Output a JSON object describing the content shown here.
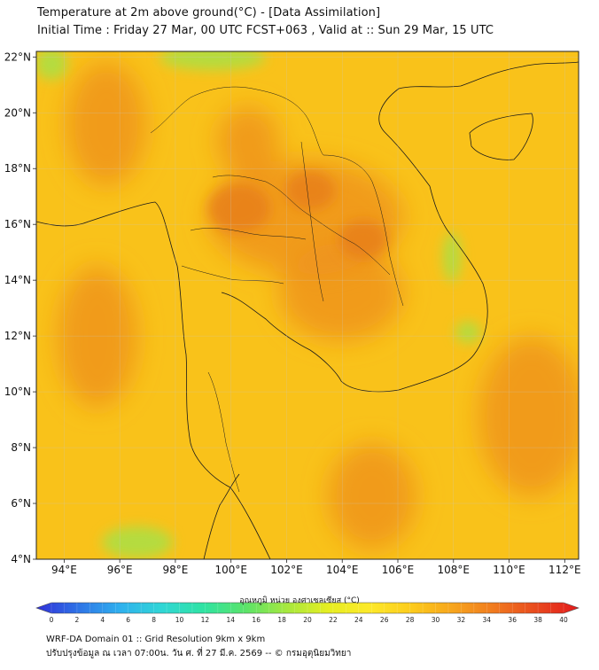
{
  "header": {
    "title_line1": "Temperature at 2m above ground(°C) - [Data Assimilation]",
    "title_line2": "Initial Time : Friday 27 Mar, 00 UTC FCST+063 , Valid at :: Sun 29 Mar, 15 UTC"
  },
  "map": {
    "variable": "2 m air temperature",
    "unit": "°C",
    "lon_range": [
      93,
      112.5
    ],
    "lat_range": [
      4,
      22.2
    ],
    "x_ticks": [
      "94°E",
      "96°E",
      "98°E",
      "100°E",
      "102°E",
      "104°E",
      "106°E",
      "108°E",
      "110°E",
      "112°E"
    ],
    "x_tick_values": [
      94,
      96,
      98,
      100,
      102,
      104,
      106,
      108,
      110,
      112
    ],
    "y_ticks": [
      "22°N",
      "20°N",
      "18°N",
      "16°N",
      "14°N",
      "12°N",
      "10°N",
      "8°N",
      "6°N",
      "4°N"
    ],
    "y_tick_values": [
      22,
      20,
      18,
      16,
      14,
      12,
      10,
      8,
      6,
      4
    ],
    "gridlines": true,
    "background_color": "#f9c21a",
    "hot_color": "#ee8f1e",
    "cool_color": "#a9e044"
  },
  "colorbar": {
    "label": "อุณหภูมิ หน่วย องศาเซลเซียส (°C)",
    "ticks": [
      "0",
      "2",
      "4",
      "6",
      "8",
      "10",
      "12",
      "14",
      "16",
      "18",
      "20",
      "22",
      "24",
      "26",
      "28",
      "30",
      "32",
      "34",
      "36",
      "38",
      "40"
    ],
    "min": 0,
    "max": 40,
    "stops": [
      "#3030d8",
      "#2f73e6",
      "#2fb0ee",
      "#30d6d6",
      "#2fe3a3",
      "#5ae36a",
      "#a6e83e",
      "#e6ee22",
      "#fde92a",
      "#fccb1c",
      "#f7a41d",
      "#f0791f",
      "#e8491e",
      "#e31a1c"
    ]
  },
  "footer": {
    "line1": "WRF-DA Domain 01 :: Grid Resolution 9km x 9km",
    "line2": "ปรับปรุงข้อมูล ณ เวลา 07:00น. วัน ศ. ที่ 27 มี.ค. 2569 -- © กรมอุตุนิยมวิทยา"
  }
}
